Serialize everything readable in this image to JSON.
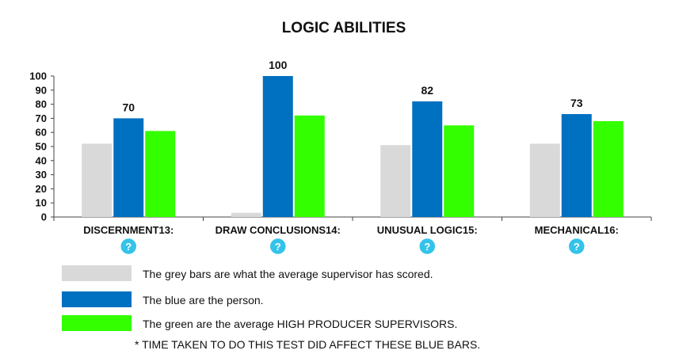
{
  "colors": {
    "grey": "#d9d9d9",
    "blue": "#0070c0",
    "green": "#33ff00",
    "help": "#33c3ea",
    "axis": "#444444"
  },
  "chart_data": {
    "type": "bar",
    "title": "LOGIC ABILITIES",
    "xlabel": "",
    "ylabel": "",
    "ylim": [
      0,
      100
    ],
    "yticks": [
      0,
      10,
      20,
      30,
      40,
      50,
      60,
      70,
      80,
      90,
      100
    ],
    "grid": false,
    "categories": [
      "DISCERNMENT13:",
      "DRAW CONCLUSIONS14:",
      "UNUSUAL LOGIC15:",
      "MECHANICAL16:"
    ],
    "series": [
      {
        "key": "grey",
        "values": [
          52,
          3,
          51,
          52
        ]
      },
      {
        "key": "blue",
        "values": [
          70,
          100,
          82,
          73
        ]
      },
      {
        "key": "green",
        "values": [
          61,
          72,
          65,
          68
        ]
      }
    ],
    "data_labels": {
      "series": "blue",
      "values": [
        "70",
        "100",
        "82",
        "73"
      ]
    },
    "help_icon_glyph": "?"
  },
  "legend": [
    {
      "color_key": "grey",
      "label": "The grey bars are what the average supervisor has scored."
    },
    {
      "color_key": "blue",
      "label": "The blue are the person."
    },
    {
      "color_key": "green",
      "label": "The green are the average HIGH PRODUCER SUPERVISORS."
    }
  ],
  "footnote": "* TIME TAKEN TO DO THIS TEST DID AFFECT THESE BLUE BARS."
}
